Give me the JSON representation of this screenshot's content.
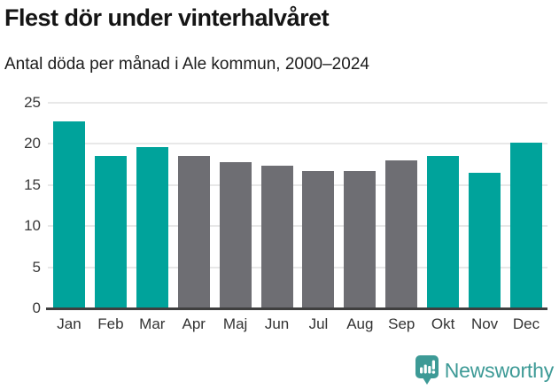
{
  "header": {
    "title": "Flest dör under vinterhalvåret",
    "subtitle": "Antal döda per månad i Ale kommun, 2000–2024"
  },
  "chart_data": {
    "type": "bar",
    "title": "Flest dör under vinterhalvåret",
    "subtitle": "Antal döda per månad i Ale kommun, 2000–2024",
    "categories": [
      "Jan",
      "Feb",
      "Mar",
      "Apr",
      "Maj",
      "Jun",
      "Jul",
      "Aug",
      "Sep",
      "Okt",
      "Nov",
      "Dec"
    ],
    "values": [
      22.7,
      18.5,
      19.6,
      18.5,
      17.8,
      17.4,
      16.7,
      16.7,
      18.0,
      18.5,
      16.5,
      20.1
    ],
    "bar_colors": [
      "#00a39b",
      "#00a39b",
      "#00a39b",
      "#6e6e73",
      "#6e6e73",
      "#6e6e73",
      "#6e6e73",
      "#6e6e73",
      "#6e6e73",
      "#00a39b",
      "#00a39b",
      "#00a39b"
    ],
    "highlight_color": "#00a39b",
    "muted_color": "#6e6e73",
    "xlabel": "",
    "ylabel": "",
    "ylim": [
      0,
      25
    ],
    "yticks": [
      0,
      5,
      10,
      15,
      20,
      25
    ],
    "grid": true,
    "legend": "none"
  },
  "footer": {
    "brand": "Newsworthy",
    "brand_color": "#3d9a96",
    "logo_icon": "speech-bubble-bar-chart"
  },
  "colors": {
    "grid": "#e8e8e8",
    "axis": "#3f3f3f",
    "tick_text": "#3a3a3a"
  }
}
